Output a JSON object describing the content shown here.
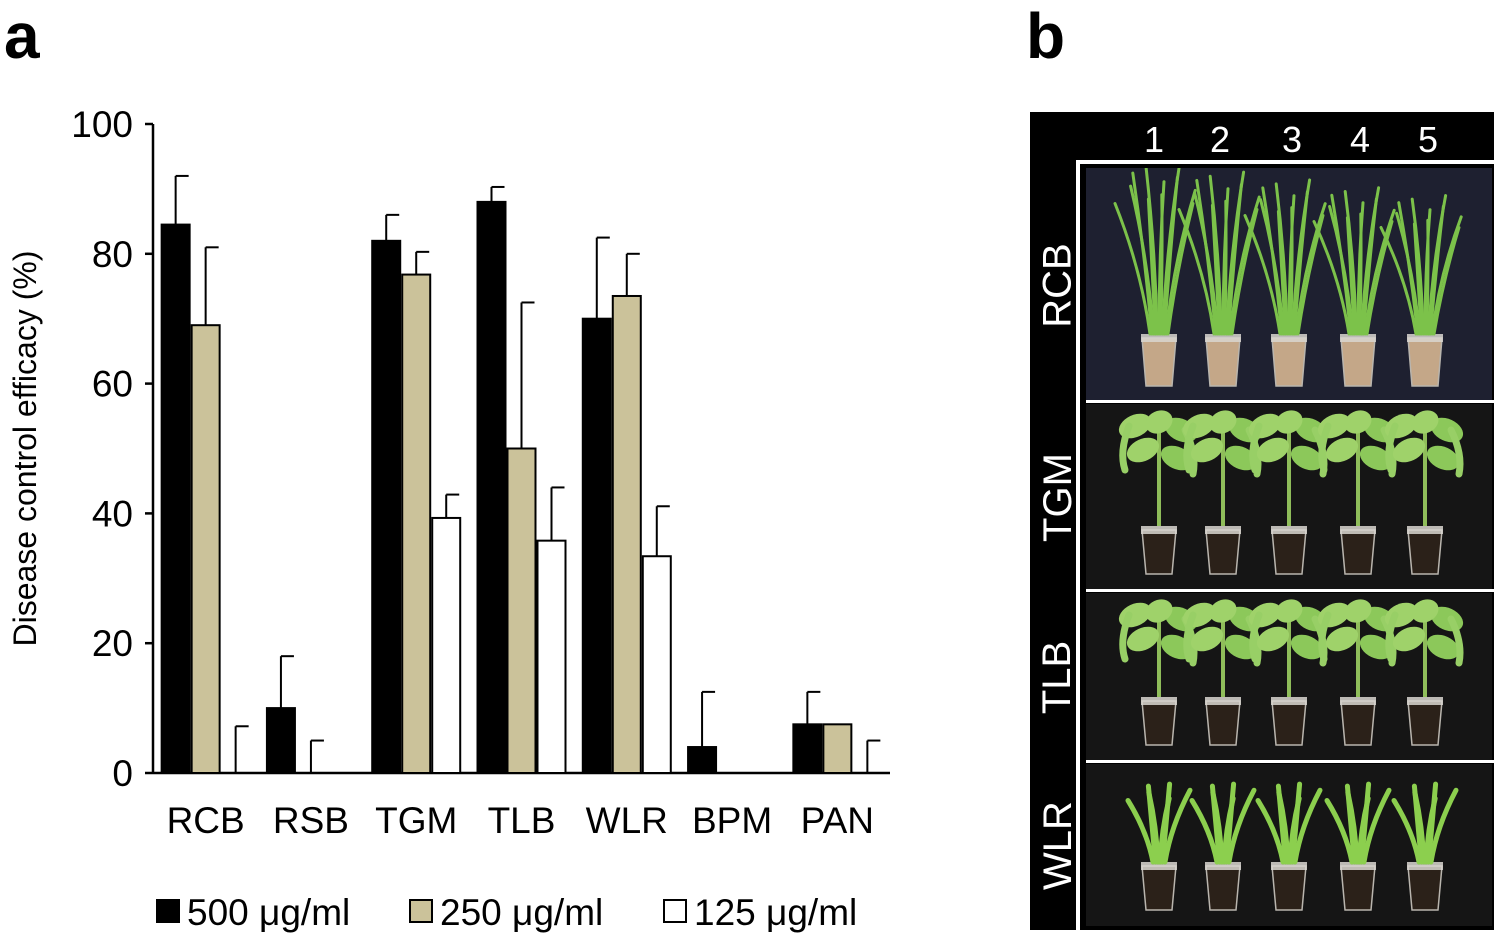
{
  "panel_labels": {
    "a": "a",
    "b": "b"
  },
  "chart_data": {
    "type": "bar",
    "ylabel": "Disease control efficacy (%)",
    "xlabel": "",
    "ylim": [
      0,
      100
    ],
    "yticks": [
      0,
      20,
      40,
      60,
      80,
      100
    ],
    "grid": false,
    "legend_position": "bottom",
    "categories": [
      "RCB",
      "RSB",
      "TGM",
      "TLB",
      "WLR",
      "BPM",
      "PAN"
    ],
    "series": [
      {
        "name": "500 μg/ml",
        "color": "#000000",
        "values": [
          84.5,
          10,
          82,
          88,
          70,
          4,
          7.5
        ],
        "errors": [
          7.5,
          8,
          4,
          2.3,
          12.5,
          8.5,
          5
        ]
      },
      {
        "name": "250 μg/ml",
        "color": "#cbc29a",
        "values": [
          69,
          0,
          76.8,
          50,
          73.5,
          0,
          7.5
        ],
        "errors": [
          12,
          5,
          3.5,
          22.5,
          6.5,
          0,
          0
        ]
      },
      {
        "name": "125 μg/ml",
        "color": "#ffffff",
        "values": [
          0,
          0,
          39.3,
          35.8,
          33.4,
          0,
          0
        ],
        "errors": [
          7.2,
          0,
          3.6,
          8.2,
          7.7,
          0,
          5
        ]
      }
    ]
  },
  "photo_panel": {
    "column_numbers": [
      "1",
      "2",
      "3",
      "4",
      "5"
    ],
    "rows": [
      {
        "label": "RCB",
        "plant": "rice",
        "soil": "#c4a788"
      },
      {
        "label": "TGM",
        "plant": "tomato",
        "soil": "#2b2119"
      },
      {
        "label": "TLB",
        "plant": "tomato",
        "soil": "#2b2119"
      },
      {
        "label": "WLR",
        "plant": "wheat",
        "soil": "#2b2119"
      }
    ]
  }
}
